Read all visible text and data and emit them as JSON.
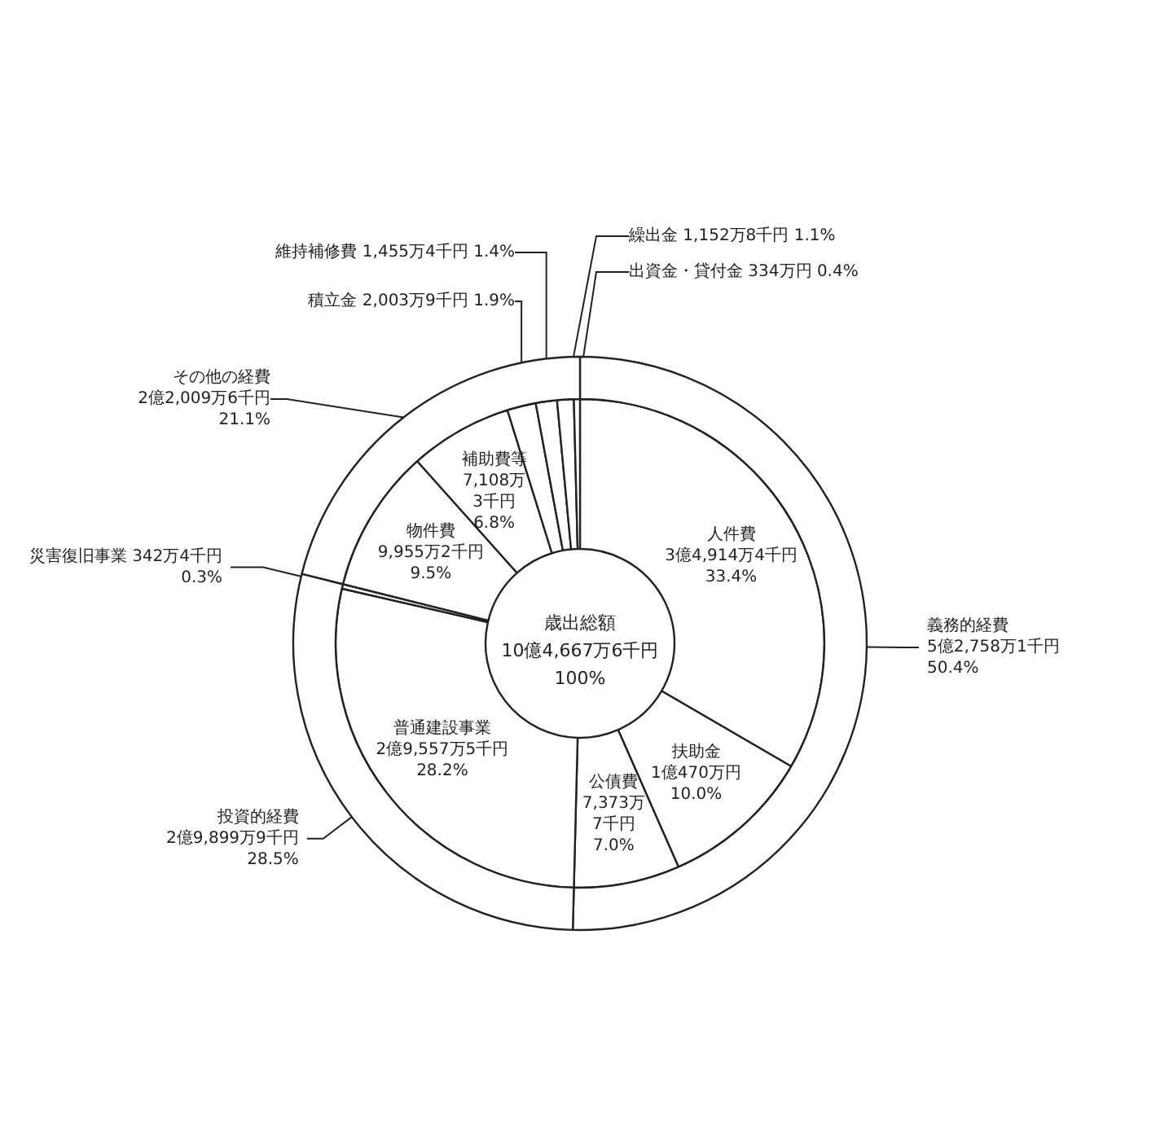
{
  "chart_data": [
    {
      "type": "donut",
      "title": "歳出総額\n10億4,667万6千円\n100%",
      "categories": [
        "人件費",
        "扶助金",
        "公債費",
        "普通建設事業",
        "災害復旧事業",
        "物件費",
        "補助費等",
        "積立金",
        "維持補修費",
        "繰出金",
        "出資金・貸付金"
      ],
      "values": [
        33.4,
        10.0,
        7.0,
        28.2,
        0.3,
        9.5,
        6.8,
        1.9,
        1.4,
        1.1,
        0.4
      ],
      "value_labels": [
        "3億4,914万4千円\n33.4%",
        "1億470万円\n10.0%",
        "7,373万\n7千円\n7.0%",
        "2億9,557万5千円\n28.2%",
        "342万4千円\n0.3%",
        "9,955万2千円\n9.5%",
        "7,108万\n3千円\n6.8%",
        "2,003万9千円 1.9%",
        "1,455万4千円 1.4%",
        "1,152万8千円 1.1%",
        "334万円 0.4%"
      ],
      "colors": [
        "#ffffff",
        "#ffffff",
        "#ffffff",
        "#ffffff",
        "#ffffff",
        "#ffffff",
        "#ffffff",
        "#ffffff",
        "#ffffff",
        "#ffffff",
        "#ffffff"
      ]
    },
    {
      "type": "donut",
      "categories": [
        "義務的経費",
        "投資的経費",
        "その他の経費"
      ],
      "values": [
        50.4,
        28.5,
        21.1
      ],
      "value_labels": [
        "5億2,758万1千円\n50.4%",
        "2億9,899万9千円\n28.5%",
        "2億2,009万6千円\n21.1%"
      ],
      "colors": [
        "#ffffff",
        "#ffffff",
        "#ffffff"
      ]
    }
  ]
}
